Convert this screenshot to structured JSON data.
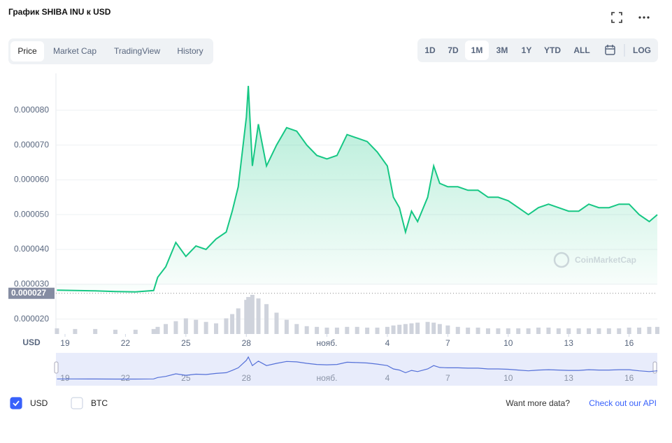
{
  "header": {
    "title": "График SHIBA INU к USD",
    "tabs": [
      "Price",
      "Market Cap",
      "TradingView",
      "History"
    ],
    "active_tab": 0,
    "ranges": [
      "1D",
      "7D",
      "1M",
      "3M",
      "1Y",
      "YTD",
      "ALL"
    ],
    "active_range": 2,
    "log": "LOG"
  },
  "chart_data": {
    "type": "line",
    "y_axis_label": "USD",
    "watermark": "CoinMarketCap",
    "current_price": {
      "value": 2.74e-05,
      "label": "0.000027"
    },
    "xlim": [
      18.55,
      48.4
    ],
    "ylim": [
      1.57e-05,
      9.06e-05
    ],
    "xticks": [
      19,
      22,
      25,
      28,
      {
        "value": 32,
        "label": "нояб."
      },
      {
        "value": 35,
        "label": "4"
      },
      {
        "value": 38,
        "label": "7"
      },
      {
        "value": 41,
        "label": "10"
      },
      {
        "value": 44,
        "label": "13"
      },
      {
        "value": 47,
        "label": "16"
      }
    ],
    "yticks": [
      {
        "value": 2e-05,
        "label": "0.000020"
      },
      {
        "value": 3e-05,
        "label": "0.000030"
      },
      {
        "value": 4e-05,
        "label": "0.000040"
      },
      {
        "value": 5e-05,
        "label": "0.000050"
      },
      {
        "value": 6e-05,
        "label": "0.000060"
      },
      {
        "value": 7e-05,
        "label": "0.000070"
      },
      {
        "value": 8e-05,
        "label": "0.000080"
      }
    ],
    "grid": true,
    "x": [
      18.6,
      19.5,
      20.5,
      21.5,
      22.5,
      23.4,
      23.6,
      24,
      24.5,
      25,
      25.5,
      26,
      26.5,
      27,
      27.3,
      27.6,
      28,
      28.1,
      28.3,
      28.6,
      29,
      29.5,
      30,
      30.5,
      31,
      31.5,
      32,
      32.5,
      33,
      33.5,
      34,
      34.5,
      35,
      35.3,
      35.6,
      35.9,
      36.2,
      36.5,
      37,
      37.3,
      37.6,
      38,
      38.5,
      39,
      39.5,
      40,
      40.5,
      41,
      41.5,
      42,
      42.5,
      43,
      43.5,
      44,
      44.5,
      45,
      45.5,
      46,
      46.5,
      47,
      47.5,
      48,
      48.4
    ],
    "series": [
      {
        "color": "#16c784",
        "values": [
          2.83e-05,
          2.82e-05,
          2.81e-05,
          2.79e-05,
          2.78e-05,
          2.82e-05,
          3.2e-05,
          3.5e-05,
          4.2e-05,
          3.8e-05,
          4.1e-05,
          4e-05,
          4.3e-05,
          4.5e-05,
          5.1e-05,
          5.8e-05,
          7.8e-05,
          8.7e-05,
          6.4e-05,
          7.6e-05,
          6.4e-05,
          7e-05,
          7.5e-05,
          7.4e-05,
          7e-05,
          6.7e-05,
          6.6e-05,
          6.7e-05,
          7.3e-05,
          7.2e-05,
          7.1e-05,
          6.8e-05,
          6.4e-05,
          5.5e-05,
          5.2e-05,
          4.5e-05,
          5.1e-05,
          4.8e-05,
          5.5e-05,
          6.4e-05,
          5.9e-05,
          5.8e-05,
          5.8e-05,
          5.7e-05,
          5.7e-05,
          5.5e-05,
          5.5e-05,
          5.4e-05,
          5.2e-05,
          5e-05,
          5.2e-05,
          5.3e-05,
          5.2e-05,
          5.1e-05,
          5.1e-05,
          5.3e-05,
          5.2e-05,
          5.2e-05,
          5.3e-05,
          5.3e-05,
          5e-05,
          4.8e-05,
          5e-05
        ]
      }
    ],
    "volume": [
      8,
      7,
      7,
      6,
      6,
      7,
      10,
      14,
      18,
      22,
      20,
      17,
      15,
      22,
      28,
      36,
      48,
      52,
      55,
      50,
      42,
      30,
      20,
      14,
      11,
      10,
      9,
      9,
      10,
      10,
      9,
      9,
      10,
      12,
      13,
      14,
      15,
      16,
      17,
      16,
      14,
      12,
      10,
      9,
      9,
      8,
      8,
      8,
      8,
      8,
      9,
      9,
      8,
      8,
      8,
      8,
      8,
      8,
      8,
      9,
      9,
      10,
      10
    ]
  },
  "footer": {
    "currencies": [
      "USD",
      "BTC"
    ],
    "checked": 0,
    "more_text": "Want more data?",
    "more_link": "Check out our API"
  }
}
